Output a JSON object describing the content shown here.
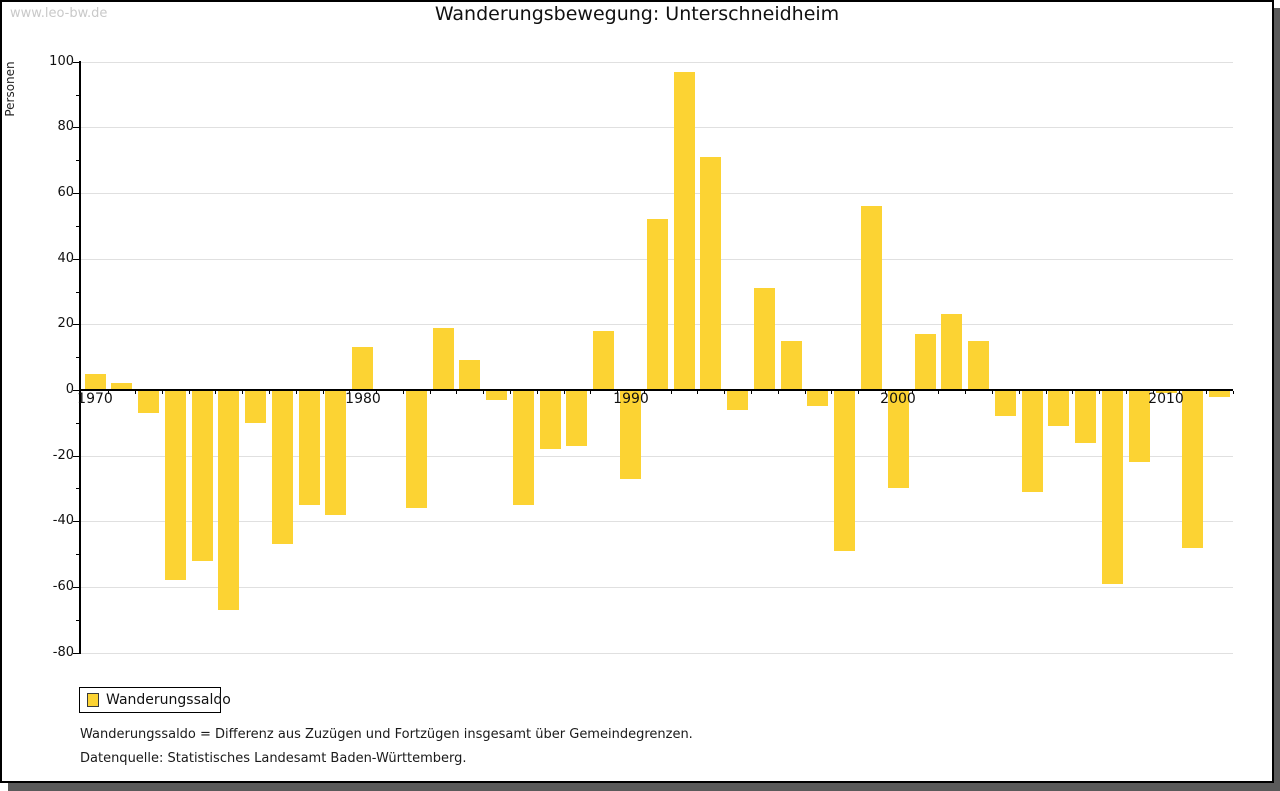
{
  "watermark": "www.leo-bw.de",
  "header": {
    "title": "Wanderungsbewegung: Unterschneidheim"
  },
  "chart_data": {
    "type": "bar",
    "title": "Wanderungsbewegung: Unterschneidheim",
    "xlabel": "",
    "ylabel": "Personen",
    "ylim": [
      -80,
      100
    ],
    "grid": true,
    "legend_position": "bottom-left",
    "y_ticks": [
      100,
      80,
      60,
      40,
      20,
      0,
      -20,
      -40,
      -60,
      -80
    ],
    "x_tick_labels": [
      "1970",
      "1980",
      "1990",
      "2000",
      "2010"
    ],
    "series": [
      {
        "name": "Wanderungssaldo",
        "color": "#fcd333",
        "categories": [
          1970,
          1971,
          1972,
          1973,
          1974,
          1975,
          1976,
          1977,
          1978,
          1979,
          1980,
          1981,
          1982,
          1983,
          1984,
          1985,
          1986,
          1987,
          1988,
          1989,
          1990,
          1991,
          1992,
          1993,
          1994,
          1995,
          1996,
          1997,
          1998,
          1999,
          2000,
          2001,
          2002,
          2003,
          2004,
          2005,
          2006,
          2007,
          2008,
          2009,
          2010,
          2011,
          2012
        ],
        "values": [
          5,
          2,
          -7,
          -58,
          -52,
          -67,
          -10,
          -47,
          -35,
          -38,
          13,
          0,
          -36,
          19,
          9,
          -3,
          -35,
          -18,
          -17,
          18,
          -27,
          52,
          97,
          71,
          -6,
          31,
          15,
          -5,
          -49,
          56,
          -30,
          17,
          23,
          15,
          -8,
          -31,
          -11,
          -16,
          -59,
          -22,
          -1,
          -48,
          -2
        ]
      }
    ]
  },
  "legend": {
    "items": [
      {
        "label": "Wanderungssaldo",
        "color": "#fcd333"
      }
    ]
  },
  "footnotes": [
    "Wanderungssaldo = Differenz aus Zuzügen und Fortzügen insgesamt über Gemeindegrenzen.",
    "Datenquelle: Statistisches Landesamt Baden-Württemberg."
  ],
  "colors": {
    "bar": "#fcd333",
    "grid": "#e0e0e0",
    "axis": "#000000",
    "watermark": "#c9c9c9",
    "frame_shadow": "#5a5a5a"
  }
}
